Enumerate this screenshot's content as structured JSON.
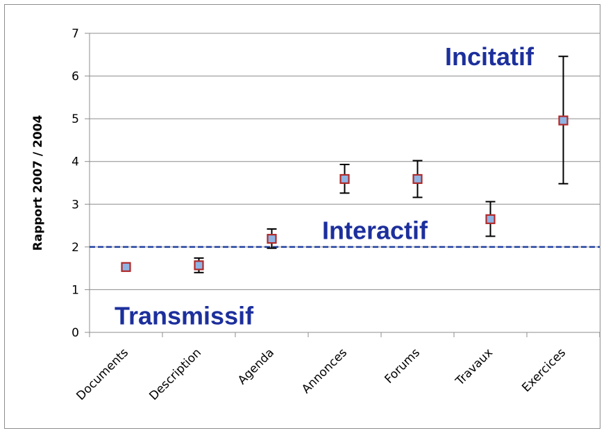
{
  "chart_data": {
    "type": "scatter",
    "ylabel": "Rapport 2007 / 2004",
    "xlabel": "",
    "ylim": [
      0,
      7
    ],
    "yticks": [
      0,
      1,
      2,
      3,
      4,
      5,
      6,
      7
    ],
    "grid": true,
    "categories": [
      "Documents",
      "Description",
      "Agenda",
      "Annonces",
      "Forums",
      "Travaux",
      "Exercices"
    ],
    "values": [
      1.53,
      1.57,
      2.19,
      3.59,
      3.59,
      2.65,
      4.96
    ],
    "error_low": [
      1.53,
      1.4,
      1.97,
      3.26,
      3.16,
      2.25,
      3.48
    ],
    "error_high": [
      1.53,
      1.74,
      2.42,
      3.93,
      4.02,
      3.06,
      6.46
    ],
    "reference_line": {
      "y": 2,
      "style": "dashed",
      "color": "#1f3f9f"
    },
    "annotations": [
      {
        "text": "Incitatif",
        "y": 6.45,
        "color": "#1c2f9c"
      },
      {
        "text": "Interactif",
        "y": 2.38,
        "color": "#1c2f9c"
      },
      {
        "text": "Transmissif",
        "y": 0.38,
        "color": "#1c2f9c"
      }
    ],
    "colors": {
      "marker_fill": "#8fb4e3",
      "marker_edge": "#b02a2a",
      "errorbar": "#000000",
      "grid": "#8c8c8c",
      "axis": "#8c8c8c",
      "annotation": "#1c2f9c"
    }
  }
}
